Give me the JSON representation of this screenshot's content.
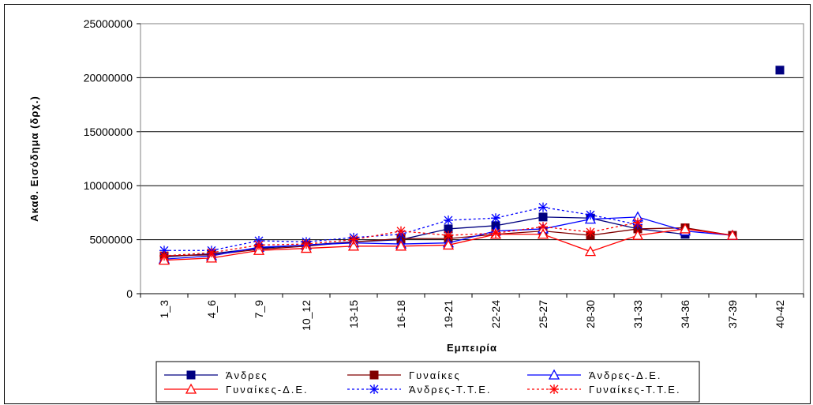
{
  "chart_data": {
    "type": "line",
    "ylabel": "Ακαθ. Εισόδημα (δρχ.)",
    "xlabel": "Εμπειρία",
    "ylim": [
      0,
      25000000
    ],
    "yticks": [
      "0",
      "5000000",
      "10000000",
      "15000000",
      "20000000",
      "25000000"
    ],
    "categories": [
      "1_3",
      "4_6",
      "7_9",
      "10_12",
      "13-15",
      "16-18",
      "19-21",
      "22-24",
      "25-27",
      "28-30",
      "31-33",
      "34-36",
      "37-39",
      "40-42"
    ],
    "legend_position": "bottom",
    "series": [
      {
        "name": "Άνδρες",
        "color": "#000080",
        "marker": "square",
        "dash": false,
        "values": [
          3400000,
          3700000,
          4200000,
          4500000,
          4800000,
          5000000,
          6000000,
          6300000,
          7100000,
          7000000,
          6000000,
          5500000,
          null,
          20700000
        ]
      },
      {
        "name": "Γυναίκες",
        "color": "#800000",
        "marker": "square",
        "dash": false,
        "values": [
          3500000,
          3600000,
          4100000,
          4400000,
          4800000,
          5100000,
          5100000,
          5500000,
          5800000,
          5400000,
          6000000,
          6100000,
          5400000,
          null
        ]
      },
      {
        "name": "Άνδρες-Δ.Ε.",
        "color": "#0000ff",
        "marker": "triangle",
        "dash": false,
        "values": [
          3200000,
          3500000,
          4300000,
          4500000,
          4700000,
          4600000,
          4700000,
          5800000,
          6000000,
          6900000,
          7100000,
          5800000,
          5400000,
          null
        ]
      },
      {
        "name": "Γυναίκες-Δ.Ε.",
        "color": "#ff0000",
        "marker": "triangle",
        "dash": false,
        "values": [
          3100000,
          3300000,
          4000000,
          4200000,
          4400000,
          4400000,
          4500000,
          5500000,
          5500000,
          3900000,
          5400000,
          6000000,
          5400000,
          null
        ]
      },
      {
        "name": "Άνδρες-Τ.Τ.Ε.",
        "color": "#0000ff",
        "marker": "asterisk",
        "dash": true,
        "values": [
          4000000,
          4000000,
          4900000,
          4800000,
          5200000,
          5500000,
          6800000,
          7000000,
          8000000,
          7300000,
          6400000,
          null,
          null,
          null
        ]
      },
      {
        "name": "Γυναίκες-Τ.Τ.Ε.",
        "color": "#ff0000",
        "marker": "asterisk",
        "dash": true,
        "values": [
          3500000,
          3800000,
          4500000,
          4600000,
          5000000,
          5800000,
          5400000,
          5600000,
          6200000,
          5700000,
          6600000,
          null,
          null,
          null
        ]
      }
    ]
  }
}
